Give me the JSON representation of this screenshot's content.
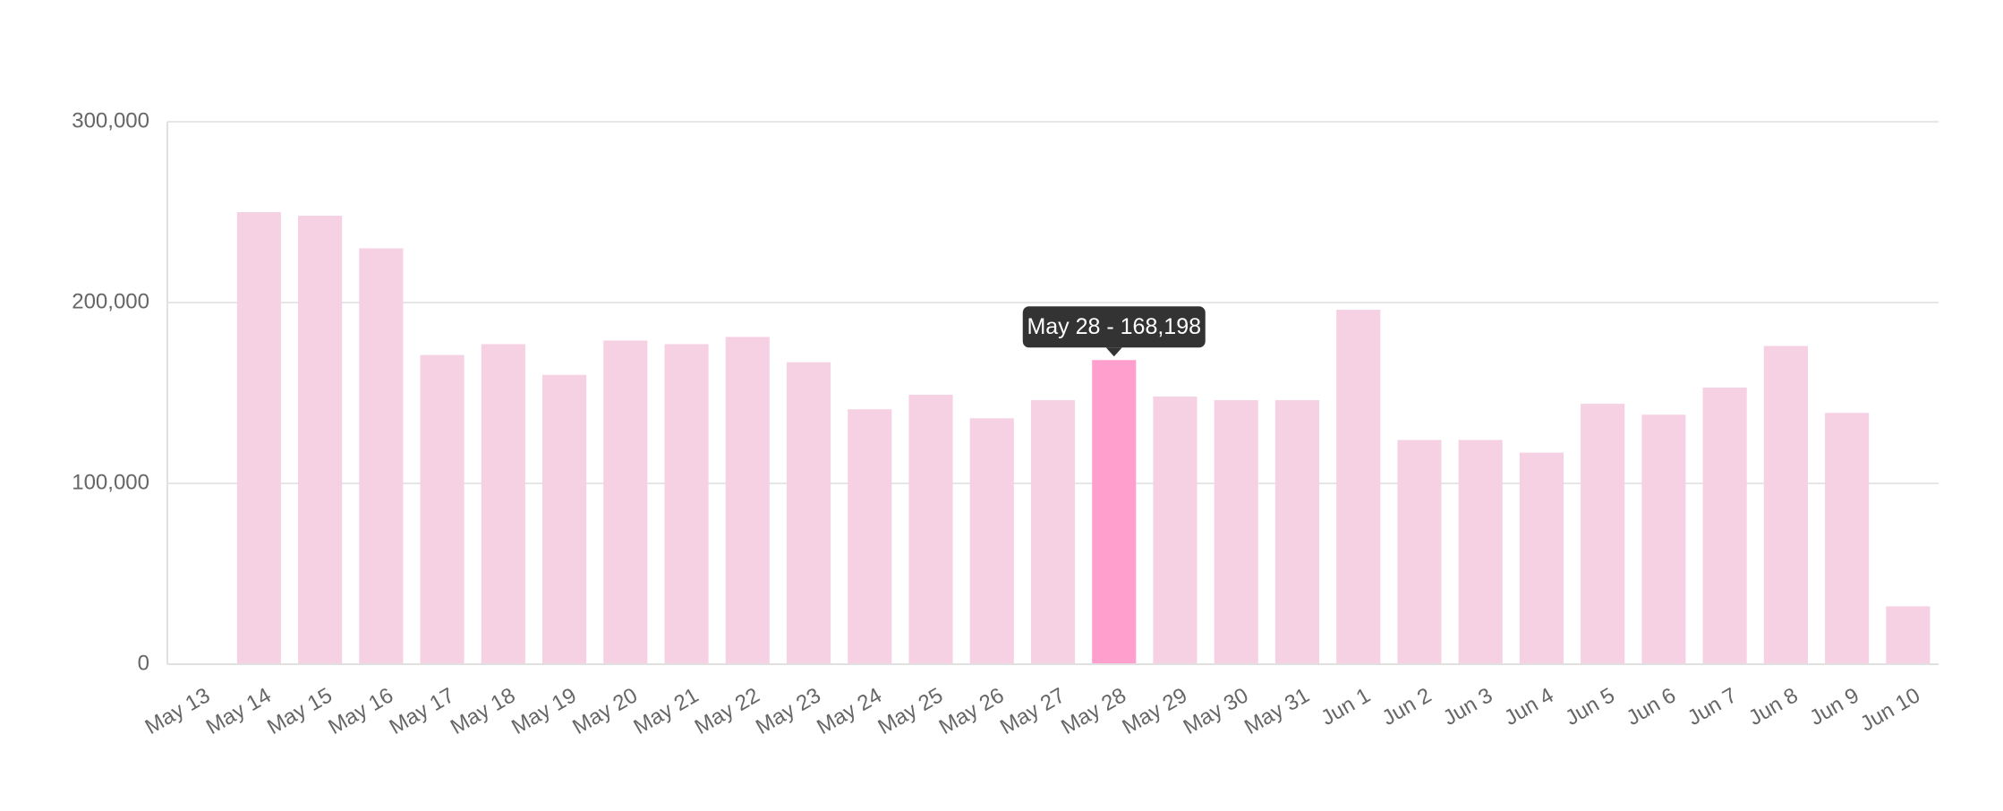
{
  "chart_data": {
    "type": "bar",
    "categories": [
      "May 13",
      "May 14",
      "May 15",
      "May 16",
      "May 17",
      "May 18",
      "May 19",
      "May 20",
      "May 21",
      "May 22",
      "May 23",
      "May 24",
      "May 25",
      "May 26",
      "May 27",
      "May 28",
      "May 29",
      "May 30",
      "May 31",
      "Jun 1",
      "Jun 2",
      "Jun 3",
      "Jun 4",
      "Jun 5",
      "Jun 6",
      "Jun 7",
      "Jun 8",
      "Jun 9",
      "Jun 10"
    ],
    "values": [
      0,
      250000,
      248000,
      230000,
      171000,
      177000,
      160000,
      179000,
      177000,
      181000,
      167000,
      141000,
      149000,
      136000,
      146000,
      168198,
      148000,
      146000,
      146000,
      196000,
      124000,
      124000,
      117000,
      144000,
      138000,
      153000,
      176000,
      139000,
      32000
    ],
    "colors": [
      "#f6d1e4",
      "#f6d1e4",
      "#f6d1e4",
      "#f6d1e4",
      "#f6d1e4",
      "#f6d1e4",
      "#f6d1e4",
      "#f6d1e4",
      "#f6d1e4",
      "#f6d1e4",
      "#f6d1e4",
      "#f6d1e4",
      "#f6d1e4",
      "#f6d1e4",
      "#f6d1e4",
      "#ff9fce",
      "#f6d1e4",
      "#f6d1e4",
      "#f6d1e4",
      "#f6d1e4",
      "#f6d1e4",
      "#f6d1e4",
      "#f6d1e4",
      "#f6d1e4",
      "#f6d1e4",
      "#f6d1e4",
      "#f6d1e4",
      "#f6d1e4",
      "#f6d1e4"
    ],
    "tooltip": "May 28 - 168,198",
    "ylim": [
      0,
      300000
    ],
    "yticks": [
      0,
      {
        "value": 100000,
        "label": "100,000"
      },
      {
        "value": 200000,
        "label": "200,000"
      },
      {
        "value": 300000,
        "label": "300,000"
      }
    ],
    "grid": true
  }
}
